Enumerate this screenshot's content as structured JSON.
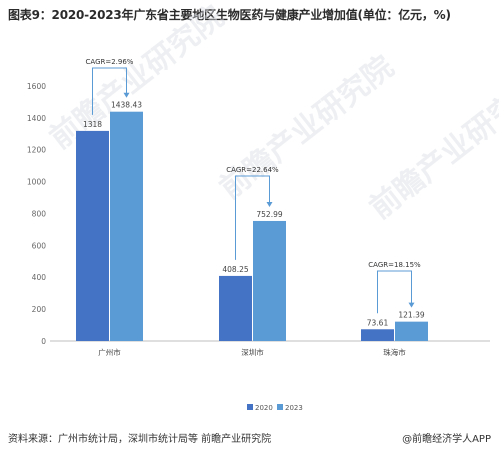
{
  "title": "图表9：2020-2023年广东省主要地区生物医药与健康产业增加值(单位：亿元，%)",
  "source": "资料来源：广州市统计局，深圳市统计局等 前瞻产业研究院",
  "brand": "@前瞻经济学人APP",
  "watermark": "前瞻产业研究院",
  "colors": {
    "series_2020": "#4472c4",
    "series_2023": "#5b9bd5",
    "bracket": "#5b9bd5",
    "grid": "#d9d9d9"
  },
  "chart_data": {
    "type": "bar",
    "categories": [
      "广州市",
      "深圳市",
      "珠海市"
    ],
    "series": [
      {
        "name": "2020",
        "values": [
          1318,
          408.25,
          73.61
        ]
      },
      {
        "name": "2023",
        "values": [
          1438.43,
          752.99,
          121.39
        ]
      }
    ],
    "data_labels": [
      [
        "1318",
        "408.25",
        "73.61"
      ],
      [
        "1438.43",
        "752.99",
        "121.39"
      ]
    ],
    "annotations": [
      "CAGR=2.96%",
      "CAGR=22.64%",
      "CAGR=18.15%"
    ],
    "yticks": [
      0,
      200,
      400,
      600,
      800,
      1000,
      1200,
      1400,
      1600
    ],
    "ylim": [
      0,
      1700
    ],
    "grid": false,
    "legend": "bottom-center"
  }
}
